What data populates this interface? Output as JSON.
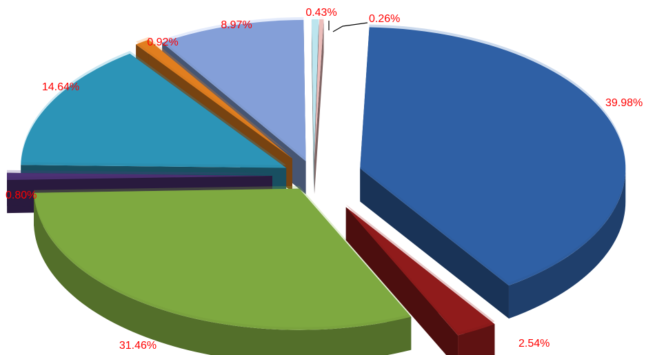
{
  "chart_data": {
    "type": "pie",
    "style": "3d-exploded",
    "label_color": "#ff0000",
    "title": "",
    "legend": "none",
    "slices": [
      {
        "value": 39.98,
        "label": "39.98%",
        "color": "#2e5d9f"
      },
      {
        "value": 2.54,
        "label": "2.54%",
        "color": "#8b1a1a"
      },
      {
        "value": 31.46,
        "label": "31.46%",
        "color": "#7aa33e"
      },
      {
        "value": 0.8,
        "label": "0.80%",
        "color": "#4a2f70"
      },
      {
        "value": 14.64,
        "label": "14.64%",
        "color": "#2b8fb0"
      },
      {
        "value": 0.92,
        "label": "0.92%",
        "color": "#d97a1e"
      },
      {
        "value": 8.97,
        "label": "8.97%",
        "color": "#7f9ad0"
      },
      {
        "value": 0.43,
        "label": "0.43%",
        "color": "#b6dde8"
      },
      {
        "value": 0.26,
        "label": "0.26%",
        "color": "#e6b7b5"
      }
    ]
  }
}
